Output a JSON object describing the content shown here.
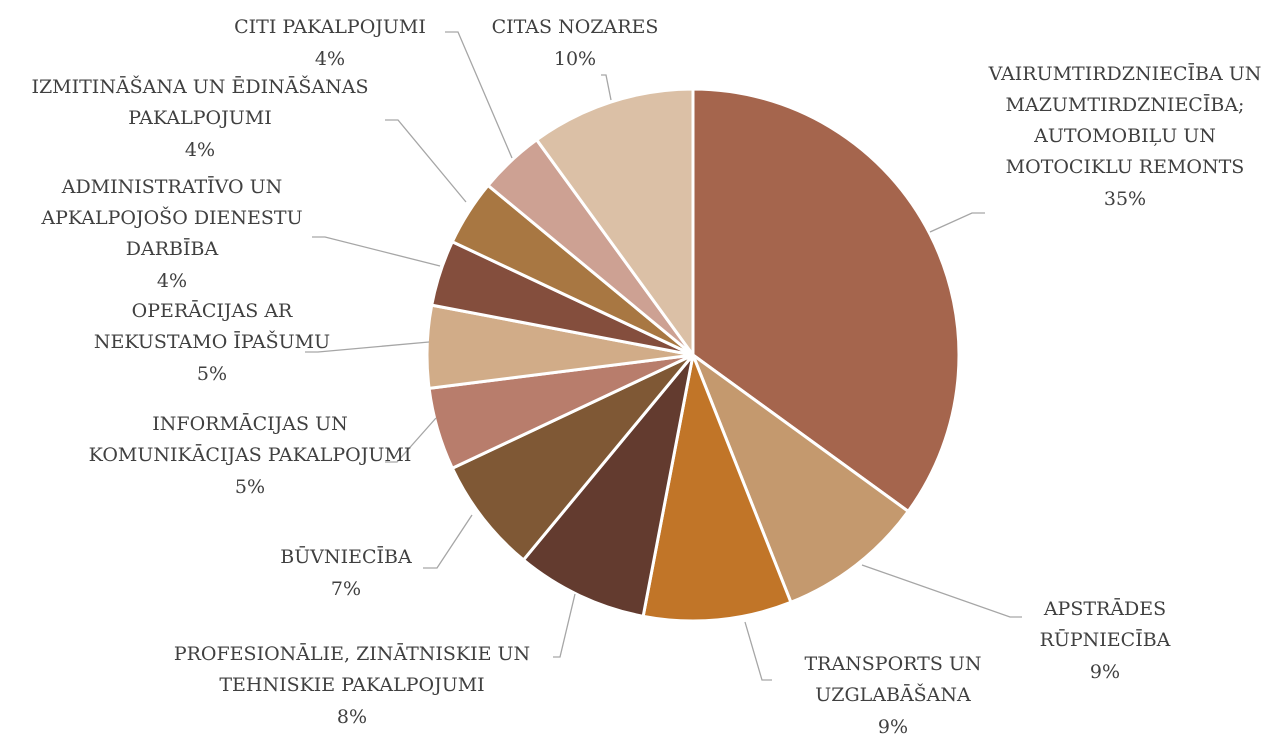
{
  "chart_data": {
    "type": "pie",
    "categories": [
      "VAIRUMTIRDZNIECĪBA UN\nMAZUMTIRDZNIECĪBA;\nAUTOMOBIĻU UN\nMOTOCIKLU REMONTS",
      "APSTRĀDES\nRŪPNIECĪBA",
      "TRANSPORTS UN\nUZGLABĀŠANA",
      "PROFESIONĀLIE, ZINĀTNISKIE UN\nTEHNISKIE PAKALPOJUMI",
      "BŪVNIECĪBA",
      "INFORMĀCIJAS UN\nKOMUNIKĀCIJAS PAKALPOJUMI",
      "OPERĀCIJAS AR\nNEKUSTAMO ĪPAŠUMU",
      "ADMINISTRATĪVO UN\nAPKALPOJOŠO DIENESTU\nDARBĪBA",
      "IZMITINĀŠANA UN ĒDINĀŠANAS\nPAKALPOJUMI",
      "CITI PAKALPOJUMI",
      "CITAS NOZARES"
    ],
    "values": [
      35,
      9,
      9,
      8,
      7,
      5,
      5,
      4,
      4,
      4,
      10
    ],
    "value_labels": [
      "35%",
      "9%",
      "9%",
      "8%",
      "7%",
      "5%",
      "5%",
      "4%",
      "4%",
      "4%",
      "10%"
    ],
    "colors": [
      "#a5654d",
      "#c4996e",
      "#c17528",
      "#633b2f",
      "#7f5835",
      "#b87d6c",
      "#d1ac88",
      "#844e3d",
      "#a87742",
      "#cda193",
      "#dbc0a6"
    ]
  }
}
